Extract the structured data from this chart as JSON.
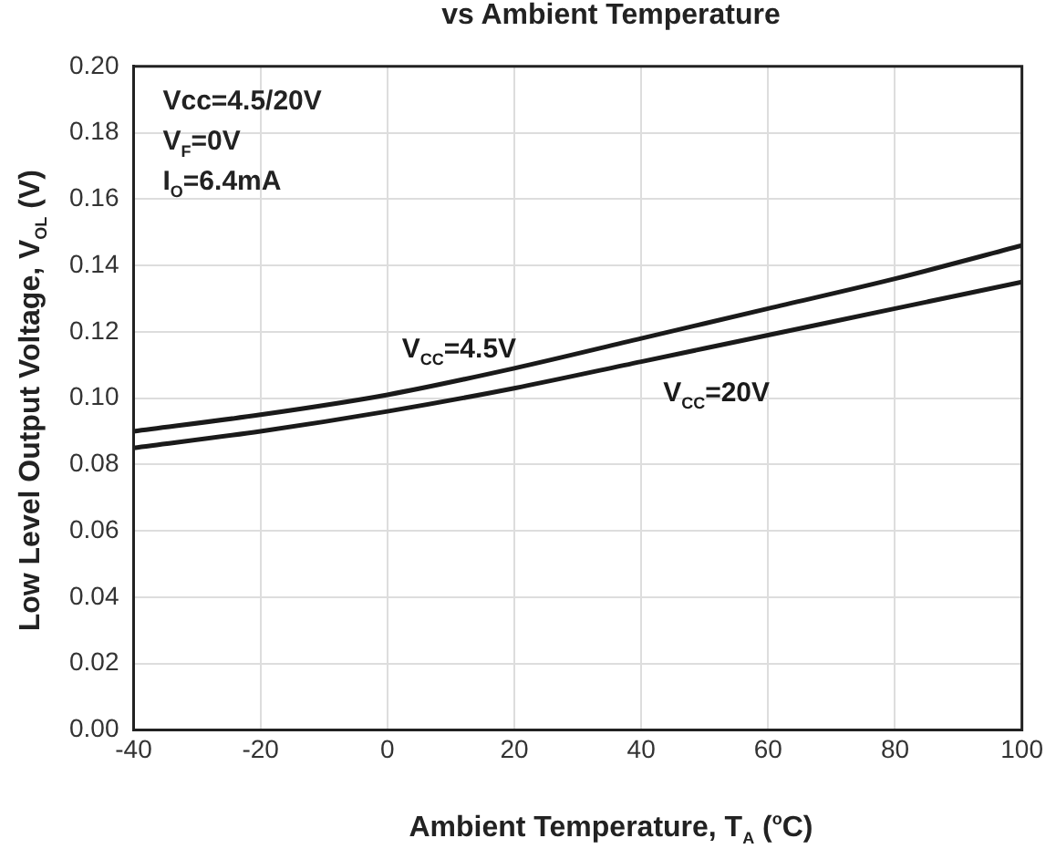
{
  "chart_data": {
    "type": "line",
    "title": "vs Ambient Temperature",
    "xlabel": "Ambient Temperature, T$_{A}$ ($^{o}$C)",
    "ylabel": "Low Level Output Voltage, V$_{OL}$ (V)",
    "x": [
      -40,
      -20,
      0,
      20,
      40,
      60,
      80,
      100
    ],
    "series": [
      {
        "name": "V$_{CC}$=4.5V",
        "color": "#1a1a1a",
        "values": [
          0.09,
          0.095,
          0.101,
          0.109,
          0.118,
          0.127,
          0.136,
          0.146
        ]
      },
      {
        "name": "V$_{CC}$=20V",
        "color": "#1a1a1a",
        "values": [
          0.085,
          0.09,
          0.096,
          0.103,
          0.111,
          0.119,
          0.127,
          0.135
        ]
      }
    ],
    "annotations": [
      "Vcc=4.5/20V",
      "V$_{F}$=0V",
      "I$_{O}$=6.4mA"
    ],
    "xlim": [
      -40,
      100
    ],
    "xticks": [
      -40,
      -20,
      0,
      20,
      40,
      60,
      80,
      100
    ],
    "ylim": [
      0,
      0.2
    ],
    "yticks": [
      {
        "value": 0,
        "label": "0.00"
      },
      {
        "value": 0.02,
        "label": "0.02"
      },
      {
        "value": 0.04,
        "label": "0.04"
      },
      {
        "value": 0.06,
        "label": "0.06"
      },
      {
        "value": 0.08,
        "label": "0.08"
      },
      {
        "value": 0.1,
        "label": "0.10"
      },
      {
        "value": 0.12,
        "label": "0.12"
      },
      {
        "value": 0.14,
        "label": "0.14"
      },
      {
        "value": 0.16,
        "label": "0.16"
      },
      {
        "value": 0.18,
        "label": "0.18"
      },
      {
        "value": 0.2,
        "label": "0.20"
      }
    ],
    "grid": true,
    "legend": false,
    "marker": "none",
    "line_style": "solid"
  }
}
